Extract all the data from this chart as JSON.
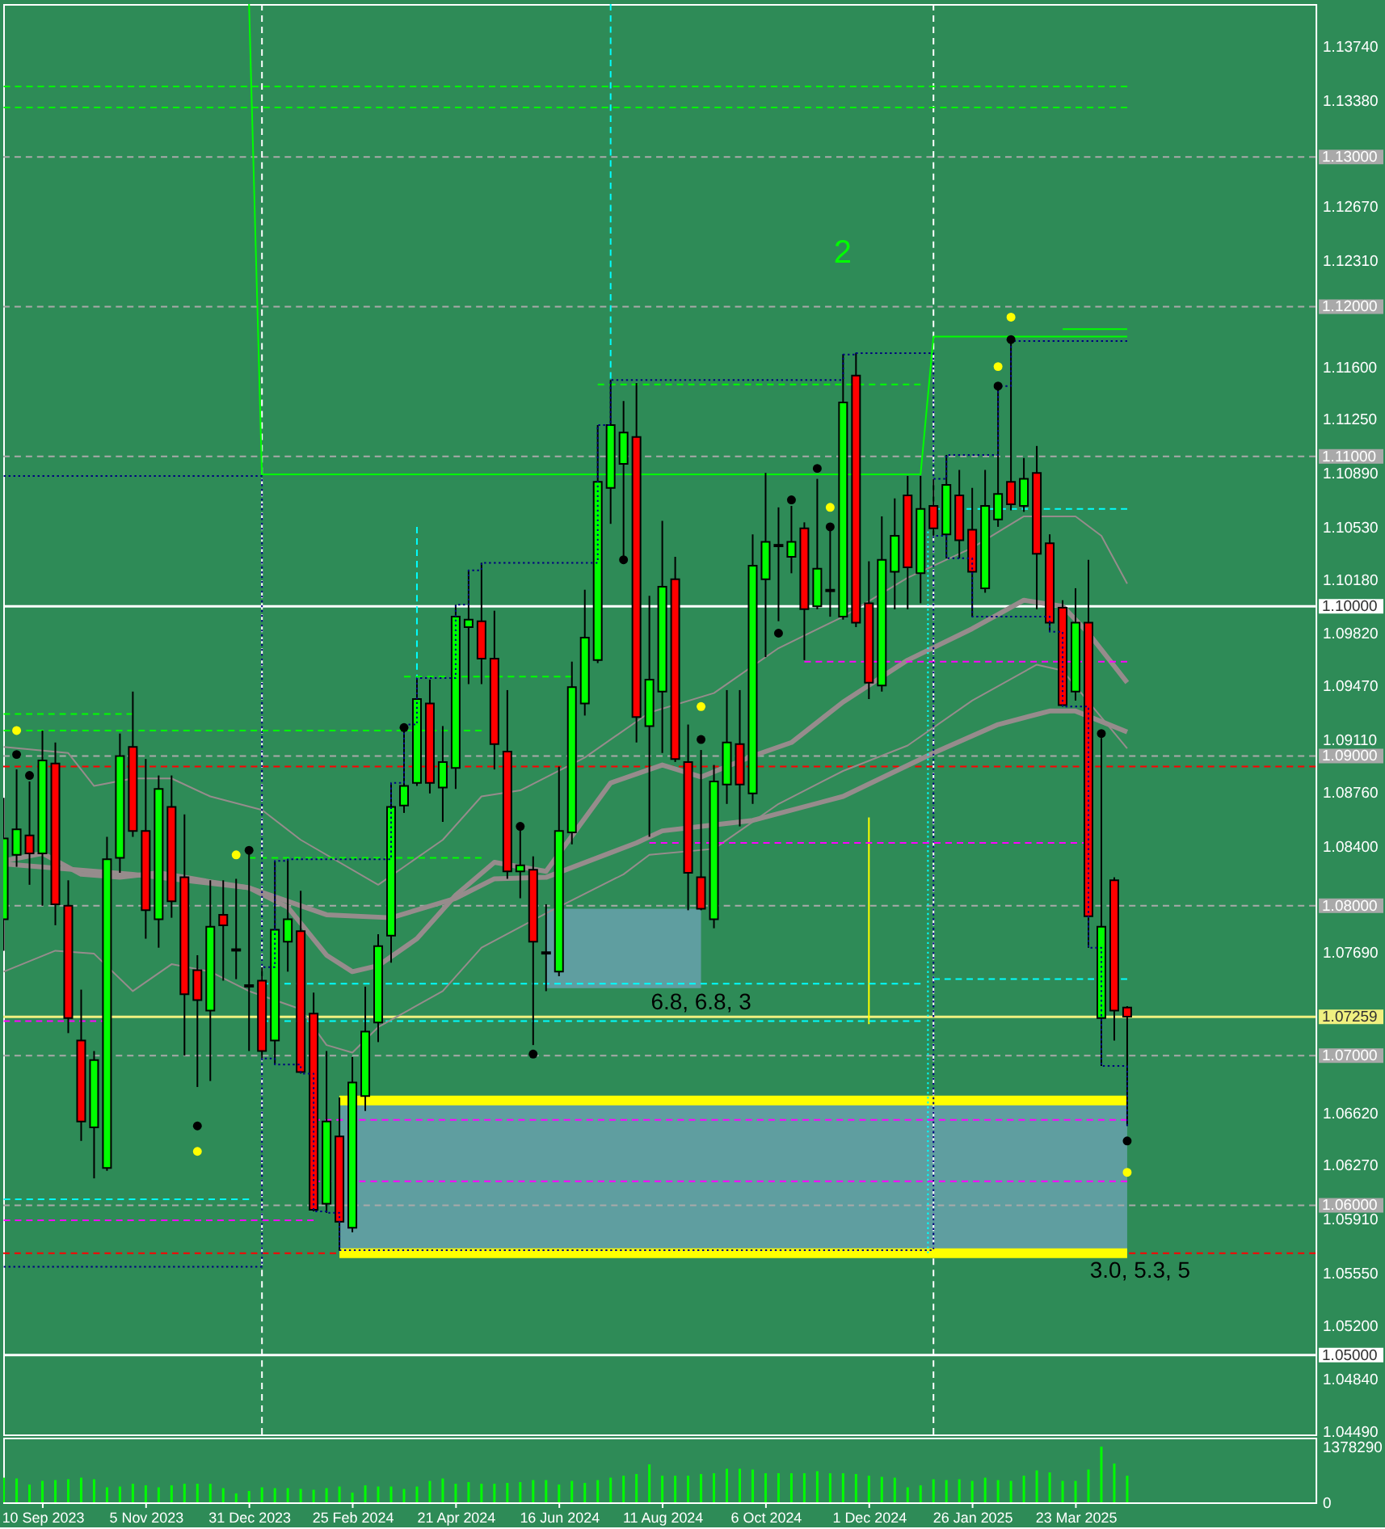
{
  "chart_data": [
    {
      "type": "candlestick",
      "x": [
        "2023-08-20",
        "2023-08-27",
        "2023-09-03",
        "2023-09-10",
        "2023-09-17",
        "2023-09-24",
        "2023-10-01",
        "2023-10-08",
        "2023-10-15",
        "2023-10-22",
        "2023-10-29",
        "2023-11-05",
        "2023-11-12",
        "2023-11-19",
        "2023-11-26",
        "2023-12-03",
        "2023-12-10",
        "2023-12-17",
        "2023-12-24",
        "2023-12-31",
        "2024-01-07",
        "2024-01-14",
        "2024-01-21",
        "2024-01-28",
        "2024-02-04",
        "2024-02-11",
        "2024-02-18",
        "2024-02-25",
        "2024-03-03",
        "2024-03-10",
        "2024-03-17",
        "2024-03-24",
        "2024-03-31",
        "2024-04-07",
        "2024-04-14",
        "2024-04-21",
        "2024-04-28",
        "2024-05-05",
        "2024-05-12",
        "2024-05-19",
        "2024-05-26",
        "2024-06-02",
        "2024-06-09",
        "2024-06-16",
        "2024-06-23",
        "2024-06-30",
        "2024-07-07",
        "2024-07-14",
        "2024-07-21",
        "2024-07-28",
        "2024-08-04",
        "2024-08-11",
        "2024-08-18",
        "2024-08-25",
        "2024-09-01",
        "2024-09-08",
        "2024-09-15",
        "2024-09-22",
        "2024-09-29",
        "2024-10-06",
        "2024-10-13",
        "2024-10-20",
        "2024-10-27",
        "2024-11-03",
        "2024-11-10",
        "2024-11-17",
        "2024-11-24",
        "2024-12-01",
        "2024-12-08",
        "2024-12-15",
        "2024-12-22",
        "2024-12-29",
        "2025-01-05",
        "2025-01-12",
        "2025-01-19",
        "2025-01-26",
        "2025-02-02",
        "2025-02-09",
        "2025-02-16",
        "2025-02-23",
        "2025-03-02",
        "2025-03-09",
        "2025-03-16",
        "2025-03-23",
        "2025-03-30",
        "2025-04-06",
        "2025-04-13",
        "2025-04-20"
      ],
      "ohlc": [
        [
          1.0791,
          1.0872,
          1.077,
          1.0845
        ],
        [
          1.0834,
          1.0891,
          1.0826,
          1.0851
        ],
        [
          1.0847,
          1.0883,
          1.0814,
          1.0835
        ],
        [
          1.0835,
          1.0917,
          1.08,
          1.0897
        ],
        [
          1.0895,
          1.0909,
          1.0787,
          1.0801
        ],
        [
          1.08,
          1.0817,
          1.0715,
          1.0725
        ],
        [
          1.071,
          1.0744,
          1.0643,
          1.0656
        ],
        [
          1.0652,
          1.0703,
          1.0618,
          1.0697
        ],
        [
          1.0625,
          1.0846,
          1.0623,
          1.0831
        ],
        [
          1.0832,
          1.0915,
          1.0822,
          1.09
        ],
        [
          1.0906,
          1.0943,
          1.0846,
          1.085
        ],
        [
          1.085,
          1.0898,
          1.0778,
          1.0797
        ],
        [
          1.0791,
          1.0887,
          1.0772,
          1.0878
        ],
        [
          1.0866,
          1.0887,
          1.0792,
          1.0803
        ],
        [
          1.0819,
          1.0861,
          1.07,
          1.0741
        ],
        [
          1.0757,
          1.0767,
          1.0679,
          1.0737
        ],
        [
          1.073,
          1.0817,
          1.0683,
          1.0786
        ],
        [
          1.0794,
          1.0817,
          1.075,
          1.0787
        ],
        [
          1.0771,
          1.0818,
          1.0751,
          1.077
        ],
        [
          1.0747,
          1.0838,
          1.0703,
          1.0746
        ],
        [
          1.075,
          1.0759,
          1.0698,
          1.0703
        ],
        [
          1.071,
          1.083,
          1.0694,
          1.0784
        ],
        [
          1.0776,
          1.0831,
          1.0756,
          1.0791
        ],
        [
          1.0783,
          1.081,
          1.0688,
          1.0689
        ],
        [
          1.0728,
          1.0742,
          1.0596,
          1.0597
        ],
        [
          1.0601,
          1.0703,
          1.0595,
          1.0656
        ],
        [
          1.0646,
          1.0672,
          1.057,
          1.0589
        ],
        [
          1.0585,
          1.0699,
          1.0582,
          1.0682
        ],
        [
          1.0673,
          1.0746,
          1.0663,
          1.0716
        ],
        [
          1.0722,
          1.0781,
          1.0709,
          1.0773
        ],
        [
          1.078,
          1.0882,
          1.0762,
          1.0866
        ],
        [
          1.0867,
          1.0921,
          1.0862,
          1.088
        ],
        [
          1.0882,
          1.0952,
          1.088,
          1.0938
        ],
        [
          1.0935,
          1.0951,
          1.0875,
          1.0882
        ],
        [
          1.0879,
          1.092,
          1.0856,
          1.0896
        ],
        [
          1.0892,
          1.1001,
          1.0878,
          1.0993
        ],
        [
          1.0986,
          1.1024,
          1.0948,
          1.0991
        ],
        [
          1.099,
          1.1029,
          1.0948,
          1.0965
        ],
        [
          1.0965,
          1.0997,
          1.0891,
          1.0908
        ],
        [
          1.0903,
          1.0944,
          1.0818,
          1.0823
        ],
        [
          1.0823,
          1.0853,
          1.0805,
          1.0827
        ],
        [
          1.0824,
          1.0833,
          1.0707,
          1.0776
        ],
        [
          1.0769,
          1.0801,
          1.0743,
          1.0768
        ],
        [
          1.0756,
          1.0893,
          1.0753,
          1.085
        ],
        [
          1.0849,
          1.0963,
          1.0841,
          1.0946
        ],
        [
          1.0935,
          1.1011,
          1.0927,
          1.0979
        ],
        [
          1.0964,
          1.1121,
          1.0962,
          1.1083
        ],
        [
          1.1079,
          1.1151,
          1.1055,
          1.1121
        ],
        [
          1.1095,
          1.1137,
          1.1031,
          1.1116
        ],
        [
          1.1113,
          1.1149,
          1.0909,
          1.0926
        ],
        [
          1.092,
          1.1007,
          1.0846,
          1.0951
        ],
        [
          1.0943,
          1.1057,
          1.0902,
          1.1013
        ],
        [
          1.1018,
          1.1033,
          1.0896,
          1.0898
        ],
        [
          1.0896,
          1.0921,
          1.0797,
          1.0822
        ],
        [
          1.0819,
          1.0904,
          1.0797,
          1.0798
        ],
        [
          1.0791,
          1.0894,
          1.0785,
          1.0883
        ],
        [
          1.0881,
          1.0944,
          1.0868,
          1.0909
        ],
        [
          1.0908,
          1.0944,
          1.0853,
          1.0881
        ],
        [
          1.0875,
          1.1048,
          1.0868,
          1.1027
        ],
        [
          1.1018,
          1.1089,
          1.0966,
          1.1043
        ],
        [
          1.1041,
          1.1066,
          1.099,
          1.104
        ],
        [
          1.1033,
          1.1067,
          1.1022,
          1.1043
        ],
        [
          1.1052,
          1.1056,
          1.0964,
          1.0998
        ],
        [
          1.1,
          1.1085,
          1.0998,
          1.1025
        ],
        [
          1.1011,
          1.1053,
          1.0993,
          1.101
        ],
        [
          1.0993,
          1.1168,
          1.0991,
          1.1136
        ],
        [
          1.1154,
          1.1169,
          1.0986,
          1.0989
        ],
        [
          1.1002,
          1.103,
          1.0938,
          1.0949
        ],
        [
          1.0947,
          1.106,
          1.0943,
          1.1031
        ],
        [
          1.1023,
          1.1072,
          1.0998,
          1.1047
        ],
        [
          1.1074,
          1.1087,
          1.0998,
          1.1026
        ],
        [
          1.1022,
          1.1087,
          1.1002,
          1.1065
        ],
        [
          1.1067,
          1.1085,
          1.1047,
          1.1052
        ],
        [
          1.1048,
          1.1101,
          1.1032,
          1.1081
        ],
        [
          1.1074,
          1.1091,
          1.1032,
          1.1044
        ],
        [
          1.1051,
          1.1079,
          1.0993,
          1.1023
        ],
        [
          1.1012,
          1.1091,
          1.1009,
          1.1067
        ],
        [
          1.1058,
          1.1147,
          1.1053,
          1.1075
        ],
        [
          1.1083,
          1.1177,
          1.1064,
          1.1068
        ],
        [
          1.1067,
          1.1099,
          1.1063,
          1.1085
        ],
        [
          1.1089,
          1.1107,
          1.0998,
          1.1035
        ],
        [
          1.1042,
          1.1048,
          1.0983,
          1.0989
        ],
        [
          1.0999,
          1.1004,
          1.0933,
          1.0934
        ],
        [
          1.0943,
          1.1012,
          1.0937,
          1.0989
        ],
        [
          1.0989,
          1.1031,
          1.0772,
          1.0793
        ],
        [
          1.0725,
          1.0912,
          1.0693,
          1.0786
        ],
        [
          1.0817,
          1.0819,
          1.071,
          1.073
        ],
        [
          1.0732,
          1.0733,
          1.0653,
          1.0726
        ]
      ],
      "colors": [
        "#00ff00",
        "#00ff00",
        "#ff0000",
        "#00ff00",
        "#ff0000",
        "#ff0000",
        "#ff0000",
        "#00ff00",
        "#00ff00",
        "#00ff00",
        "#ff0000",
        "#ff0000",
        "#00ff00",
        "#ff0000",
        "#ff0000",
        "#ff0000",
        "#00ff00",
        "#ff0000",
        "#ff0000",
        "#ff0000",
        "#ff0000",
        "#00ff00",
        "#00ff00",
        "#ff0000",
        "#ff0000",
        "#00ff00",
        "#ff0000",
        "#00ff00",
        "#00ff00",
        "#00ff00",
        "#00ff00",
        "#00ff00",
        "#00ff00",
        "#ff0000",
        "#00ff00",
        "#00ff00",
        "#00ff00",
        "#ff0000",
        "#ff0000",
        "#ff0000",
        "#00ff00",
        "#ff0000",
        "#ff0000",
        "#00ff00",
        "#00ff00",
        "#00ff00",
        "#00ff00",
        "#00ff00",
        "#00ff00",
        "#ff0000",
        "#00ff00",
        "#00ff00",
        "#ff0000",
        "#ff0000",
        "#ff0000",
        "#00ff00",
        "#00ff00",
        "#ff0000",
        "#00ff00",
        "#00ff00",
        "#ff0000",
        "#00ff00",
        "#ff0000",
        "#00ff00",
        "#ff0000",
        "#00ff00",
        "#ff0000",
        "#ff0000",
        "#00ff00",
        "#00ff00",
        "#ff0000",
        "#00ff00",
        "#ff0000",
        "#00ff00",
        "#ff0000",
        "#ff0000",
        "#00ff00",
        "#00ff00",
        "#ff0000",
        "#00ff00",
        "#ff0000",
        "#ff0000",
        "#ff0000",
        "#00ff00",
        "#ff0000",
        "#00ff00",
        "#ff0000",
        "#ff0000"
      ],
      "series": [
        {
          "type": "line",
          "color": "#968c8c",
          "line_style": "solid",
          "x": [
            "2023-08-20",
            "2023-09-10",
            "2023-10-01",
            "2023-10-22",
            "2023-11-12",
            "2023-12-10",
            "2023-12-31",
            "2024-01-21",
            "2024-02-11",
            "2024-02-25",
            "2024-03-10",
            "2024-03-31",
            "2024-04-21",
            "2024-05-12",
            "2024-06-09",
            "2024-07-14",
            "2024-08-11",
            "2024-09-01",
            "2024-09-29",
            "2024-10-20",
            "2024-11-17",
            "2024-12-22",
            "2025-01-26",
            "2025-02-23",
            "2025-03-16",
            "2025-03-30",
            "2025-04-20"
          ],
          "values": [
            1.083,
            1.0835,
            1.0821,
            1.0819,
            1.0822,
            1.0816,
            1.0812,
            1.0799,
            1.0767,
            1.0756,
            1.076,
            1.0778,
            1.0807,
            1.0829,
            1.0823,
            1.0882,
            1.0894,
            1.0886,
            1.09,
            1.0909,
            1.0936,
            1.0964,
            1.0985,
            1.1004,
            1.1,
            1.0982,
            1.0949
          ]
        },
        {
          "type": "line",
          "color": "#968c8c",
          "line_style": "solid",
          "x": [
            "2023-08-20",
            "2023-10-29",
            "2023-12-31",
            "2024-02-11",
            "2024-03-17",
            "2024-04-21",
            "2024-05-12",
            "2024-06-09",
            "2024-07-28",
            "2024-08-11",
            "2024-09-29",
            "2024-11-17",
            "2025-01-05",
            "2025-02-09",
            "2025-03-09",
            "2025-03-23",
            "2025-04-20"
          ],
          "values": [
            1.0828,
            1.0821,
            1.0812,
            1.0794,
            1.0792,
            1.0805,
            1.0818,
            1.0819,
            1.0842,
            1.085,
            1.0857,
            1.0873,
            1.0902,
            1.0921,
            1.093,
            1.093,
            1.0916
          ]
        },
        {
          "type": "line",
          "color": "#5f9ea0",
          "x": [
            "2024-06-09",
            "2024-09-01"
          ],
          "values": [
            null,
            null
          ],
          "upper": [
            1.0798,
            1.0798
          ],
          "lower": [
            1.0745,
            1.0745
          ]
        },
        {
          "type": "line",
          "color": "#5f9ea0",
          "x": [
            "2024-02-18",
            "2025-04-20"
          ],
          "values": [
            null,
            null
          ],
          "upper": [
            1.067,
            1.067
          ],
          "lower": [
            1.0568,
            1.0568
          ]
        },
        {
          "type": "line",
          "color": "#ffff00",
          "line_style": "solid",
          "x": [
            "2024-02-18",
            "2025-04-20"
          ],
          "values": [
            1.067,
            1.067
          ]
        },
        {
          "type": "line",
          "color": "#ffff00",
          "line_style": "solid",
          "x": [
            "2024-02-18",
            "2025-04-20"
          ],
          "values": [
            1.0568,
            1.0568
          ]
        },
        {
          "type": "line",
          "color": "#00ff00",
          "line_style": "dashed",
          "x": [
            "2023-08-20",
            "2025-04-20"
          ],
          "values": [
            1.1347,
            1.1347
          ]
        },
        {
          "type": "line",
          "color": "#00ff00",
          "line_style": "dashed",
          "x": [
            "2023-08-20",
            "2025-04-20"
          ],
          "values": [
            1.1333,
            1.1333
          ]
        },
        {
          "type": "line",
          "color": "#00ff00",
          "line_style": "solid",
          "x": [
            "2023-12-31",
            "2024-01-07",
            "2024-12-29",
            "2025-01-05",
            "2025-04-20"
          ],
          "values": [
            1.1402,
            1.1088,
            1.1088,
            1.118,
            1.118
          ]
        },
        {
          "type": "line",
          "color": "#ffff00",
          "line_style": "solid",
          "x": [
            "2024-12-01",
            "2024-12-01"
          ],
          "values": [
            1.0859,
            1.0721
          ]
        },
        {
          "type": "line",
          "color": "#00ffff",
          "line_style": "dashed",
          "x": [
            "2024-07-14",
            "2024-07-14"
          ],
          "values": [
            1.1402,
            1.1152
          ]
        },
        {
          "type": "line",
          "color": "#00ffff",
          "line_style": "dashed",
          "x": [
            "2024-03-31",
            "2024-03-31"
          ],
          "values": [
            1.1053,
            1.095
          ]
        },
        {
          "type": "line",
          "color": "#00ffff",
          "line_style": "dotted",
          "x": [
            "2025-01-02",
            "2025-01-02"
          ],
          "values": [
            1.105,
            1.0568
          ]
        },
        {
          "type": "line",
          "color": "#00ffff",
          "line_style": "dashed",
          "x": [
            "2024-01-07",
            "2024-12-29"
          ],
          "values": [
            1.0748,
            1.0748
          ]
        },
        {
          "type": "line",
          "color": "#00ffff",
          "line_style": "dashed",
          "x": [
            "2024-01-07",
            "2024-12-29"
          ],
          "values": [
            1.0723,
            1.0723
          ]
        },
        {
          "type": "line",
          "color": "#00ffff",
          "line_style": "dashed",
          "x": [
            "2025-01-05",
            "2025-04-20"
          ],
          "values": [
            1.0751,
            1.0751
          ]
        },
        {
          "type": "line",
          "color": "#00ffff",
          "line_style": "dashed",
          "x": [
            "2025-01-05",
            "2025-04-20"
          ],
          "values": [
            1.1065,
            1.1065
          ]
        },
        {
          "type": "line",
          "color": "#00ffff",
          "line_style": "dashed",
          "x": [
            "2023-08-20",
            "2023-12-31"
          ],
          "values": [
            1.0604,
            1.0604
          ]
        },
        {
          "type": "scatter",
          "color": "#ffff00",
          "x": [
            "2023-08-27",
            "2023-12-03",
            "2023-12-24",
            "2024-09-01",
            "2024-11-10",
            "2025-02-09",
            "2025-02-16",
            "2025-04-20"
          ],
          "values": [
            1.0917,
            1.0636,
            1.0834,
            1.0933,
            1.1066,
            1.116,
            1.1193,
            1.0622
          ]
        },
        {
          "type": "scatter",
          "color": "#000000",
          "x": [
            "2023-08-27",
            "2023-09-03",
            "2023-12-03",
            "2023-12-31",
            "2024-03-24",
            "2024-05-26",
            "2024-06-02",
            "2024-07-21",
            "2024-09-01",
            "2024-10-13",
            "2024-10-20",
            "2024-11-03",
            "2024-11-10",
            "2025-02-09",
            "2025-02-16",
            "2025-04-06",
            "2025-04-20"
          ],
          "values": [
            1.0901,
            1.0887,
            1.0653,
            1.0837,
            1.0919,
            1.0853,
            1.0701,
            1.1031,
            1.0911,
            1.0982,
            1.1071,
            1.1092,
            1.1053,
            1.1147,
            1.1178,
            1.0915,
            1.0643
          ]
        },
        {
          "type": "step",
          "color": "#000080",
          "line_style": "dotted",
          "x": [
            "2023-08-20",
            "2023-12-31",
            "2024-01-07",
            "2024-01-14",
            "2024-01-21",
            "2024-03-17",
            "2024-03-24",
            "2024-03-31",
            "2024-04-21",
            "2024-04-28",
            "2024-05-05",
            "2024-07-07",
            "2024-07-14",
            "2024-11-17",
            "2024-11-24",
            "2024-12-29",
            "2025-01-05",
            "2025-01-12",
            "2025-02-09",
            "2025-02-16",
            "2025-04-20"
          ],
          "values": [
            1.1087,
            1.1087,
            1.0759,
            1.083,
            1.0831,
            1.0882,
            1.0921,
            1.0952,
            1.1001,
            1.1024,
            1.1029,
            1.1121,
            1.1151,
            1.1168,
            1.1169,
            1.1169,
            1.1085,
            1.1101,
            1.1147,
            1.1177,
            1.1177
          ]
        },
        {
          "type": "step",
          "color": "#000080",
          "line_style": "dotted",
          "x": [
            "2023-08-20",
            "2023-12-31",
            "2024-01-07",
            "2024-01-14",
            "2024-01-28",
            "2024-02-04",
            "2024-02-11",
            "2024-02-18",
            "2024-12-29",
            "2025-01-05",
            "2025-01-12",
            "2025-01-26",
            "2025-03-09",
            "2025-03-16",
            "2025-03-30",
            "2025-04-06",
            "2025-04-20"
          ],
          "values": [
            1.0559,
            1.0559,
            1.0698,
            1.0694,
            1.0688,
            1.0596,
            1.0595,
            1.057,
            1.057,
            1.1047,
            1.1032,
            1.0993,
            1.0983,
            1.0933,
            1.0772,
            1.0693,
            1.0653
          ]
        },
        {
          "type": "line",
          "color": "#968c8c",
          "line_style": "solid",
          "x": [
            "2023-08-20",
            "2023-09-24",
            "2023-10-08",
            "2023-10-29",
            "2023-11-19",
            "2023-12-10",
            "2024-01-07",
            "2024-01-28",
            "2024-03-10",
            "2024-04-14",
            "2024-05-05",
            "2024-05-26",
            "2024-06-30",
            "2024-08-04",
            "2024-09-08",
            "2024-10-13",
            "2024-11-17",
            "2024-12-22",
            "2025-01-26",
            "2025-02-23",
            "2025-03-23",
            "2025-04-06",
            "2025-04-20"
          ],
          "values": [
            1.0906,
            1.0902,
            1.088,
            1.0885,
            1.0885,
            1.0873,
            1.0864,
            1.0844,
            1.0814,
            1.0844,
            1.0873,
            1.0877,
            1.0899,
            1.0929,
            1.0942,
            1.0972,
            1.0993,
            1.1019,
            1.1039,
            1.106,
            1.106,
            1.1047,
            1.1015
          ]
        },
        {
          "type": "line",
          "color": "#968c8c",
          "line_style": "solid",
          "x": [
            "2023-08-20",
            "2023-09-17",
            "2023-10-08",
            "2023-10-29",
            "2023-11-19",
            "2023-12-10",
            "2023-12-31",
            "2024-01-28",
            "2024-02-11",
            "2024-02-25",
            "2024-03-10",
            "2024-04-14",
            "2024-05-05",
            "2024-06-09",
            "2024-07-21",
            "2024-08-04",
            "2024-09-08",
            "2024-10-13",
            "2024-11-17",
            "2024-12-22",
            "2025-01-26",
            "2025-03-02",
            "2025-03-16",
            "2025-04-20"
          ],
          "values": [
            1.0756,
            1.077,
            1.0768,
            1.0743,
            1.0761,
            1.0756,
            1.0743,
            1.0731,
            1.0707,
            1.0702,
            1.0719,
            1.0743,
            1.0772,
            1.0795,
            1.0821,
            1.0834,
            1.0838,
            1.0868,
            1.089,
            1.0907,
            1.0937,
            1.0961,
            1.0957,
            1.0905
          ]
        },
        {
          "type": "line",
          "color": "#ff00ff",
          "line_style": "dashed",
          "x": [
            "2024-02-04",
            "2025-04-20"
          ],
          "values": [
            1.0657,
            1.0657
          ]
        },
        {
          "type": "line",
          "color": "#ff00ff",
          "line_style": "dashed",
          "x": [
            "2024-02-04",
            "2025-04-20"
          ],
          "values": [
            1.0616,
            1.0616
          ]
        },
        {
          "type": "line",
          "color": "#ff00ff",
          "line_style": "dashed",
          "x": [
            "2023-08-20",
            "2024-02-04"
          ],
          "values": [
            1.059,
            1.059
          ]
        },
        {
          "type": "line",
          "color": "#ff00ff",
          "line_style": "dashed",
          "x": [
            "2024-08-04",
            "2025-03-30"
          ],
          "values": [
            1.0842,
            1.0842
          ]
        },
        {
          "type": "line",
          "color": "#ff00ff",
          "line_style": "dashed",
          "x": [
            "2024-10-27",
            "2025-04-20"
          ],
          "values": [
            1.0963,
            1.0963
          ]
        },
        {
          "type": "line",
          "color": "#ff00ff",
          "line_style": "dashed",
          "x": [
            "2023-08-20",
            "2023-10-15"
          ],
          "values": [
            1.0723,
            1.0723
          ]
        },
        {
          "type": "line",
          "color": "#00ff00",
          "line_style": "dashed",
          "x": [
            "2023-08-20",
            "2023-10-29"
          ],
          "values": [
            1.0928,
            1.0928
          ]
        },
        {
          "type": "line",
          "color": "#00ff00",
          "line_style": "dashed",
          "x": [
            "2023-08-20",
            "2024-05-05"
          ],
          "values": [
            1.0917,
            1.0917
          ]
        },
        {
          "type": "line",
          "color": "#00ff00",
          "line_style": "dashed",
          "x": [
            "2023-12-31",
            "2024-05-05"
          ],
          "values": [
            1.0832,
            1.0832
          ]
        },
        {
          "type": "line",
          "color": "#00ff00",
          "line_style": "dashed",
          "x": [
            "2024-03-24",
            "2024-06-23"
          ],
          "values": [
            1.0953,
            1.0953
          ]
        },
        {
          "type": "line",
          "color": "#00ff00",
          "line_style": "dashed",
          "x": [
            "2024-07-07",
            "2024-12-29"
          ],
          "values": [
            1.1148,
            1.1148
          ]
        },
        {
          "type": "line",
          "color": "#00ff00",
          "line_style": "solid",
          "x": [
            "2025-03-16",
            "2025-04-20"
          ],
          "values": [
            1.1185,
            1.1185
          ]
        }
      ],
      "xlim": [
        "2023-08-19T18:00",
        "2025-07-31T03:00"
      ],
      "ylim": [
        1.0447,
        1.1402
      ],
      "yticks": [
        {
          "value": 1.1374,
          "label": "1.13740"
        },
        {
          "value": 1.1338,
          "label": "1.13380"
        },
        {
          "value": 1.1267,
          "label": "1.12670"
        },
        {
          "value": 1.1231,
          "label": "1.12310"
        },
        {
          "value": 1.116,
          "label": "1.11600"
        },
        {
          "value": 1.1125,
          "label": "1.11250"
        },
        {
          "value": 1.1089,
          "label": "1.10890"
        },
        {
          "value": 1.1053,
          "label": "1.10530"
        },
        {
          "value": 1.1018,
          "label": "1.10180"
        },
        {
          "value": 1.0982,
          "label": "1.09820"
        },
        {
          "value": 1.0947,
          "label": "1.09470"
        },
        {
          "value": 1.0911,
          "label": "1.09110"
        },
        {
          "value": 1.0876,
          "label": "1.08760"
        },
        {
          "value": 1.084,
          "label": "1.08400"
        },
        {
          "value": 1.0769,
          "label": "1.07690"
        },
        {
          "value": 1.0662,
          "label": "1.06620"
        },
        {
          "value": 1.0627,
          "label": "1.06270"
        },
        {
          "value": 1.0591,
          "label": "1.05910"
        },
        {
          "value": 1.0555,
          "label": "1.05550"
        },
        {
          "value": 1.052,
          "label": "1.05200"
        },
        {
          "value": 1.0484,
          "label": "1.04840"
        },
        {
          "value": 1.0449,
          "label": "1.04490"
        }
      ],
      "tick_labels": "y",
      "ref_lines": [
        {
          "axis": "y",
          "value": 1.13,
          "label": "1.13000",
          "color": "#a9a9a9",
          "line_style": "dashed"
        },
        {
          "axis": "y",
          "value": 1.12,
          "label": "1.12000",
          "color": "#a9a9a9",
          "line_style": "dashed"
        },
        {
          "axis": "y",
          "value": 1.11,
          "label": "1.11000",
          "color": "#a9a9a9",
          "line_style": "dashed"
        },
        {
          "axis": "y",
          "value": 1.1,
          "label": "1.10000",
          "color": "#ffffff",
          "line_style": "solid"
        },
        {
          "axis": "y",
          "value": 1.09,
          "label": "1.09000",
          "color": "#a9a9a9",
          "line_style": "dashed"
        },
        {
          "axis": "y",
          "value": 1.08,
          "label": "1.08000",
          "color": "#a9a9a9",
          "line_style": "dashed"
        },
        {
          "axis": "y",
          "value": 1.07259,
          "label": "1.07259",
          "color": "#f0f080",
          "line_style": "solid"
        },
        {
          "axis": "y",
          "value": 1.07,
          "label": "1.07000",
          "color": "#a9a9a9",
          "line_style": "dashed"
        },
        {
          "axis": "y",
          "value": 1.06,
          "label": "1.06000",
          "color": "#a9a9a9",
          "line_style": "dashed"
        },
        {
          "axis": "y",
          "value": 1.05,
          "label": "1.05000",
          "color": "#ffffff",
          "line_style": "solid"
        },
        {
          "axis": "y",
          "value": 1.0893,
          "color": "#ff0000",
          "line_style": "dashed"
        },
        {
          "axis": "y",
          "value": 1.0568,
          "color": "#ff0000",
          "line_style": "dashed"
        },
        {
          "axis": "x",
          "value": "2024-01-07",
          "color": "#ffffff",
          "line_style": "dashed"
        },
        {
          "axis": "x",
          "value": "2025-01-05",
          "color": "#ffffff",
          "line_style": "dashed"
        }
      ],
      "annotations": [
        "2",
        {
          "text": "6.8, 6.8, 3",
          "x": "2024-09-01",
          "y": 1.0745
        },
        {
          "text": "3.0, 5.3, 5",
          "x": "2025-04-20",
          "y": 1.0568
        }
      ]
    },
    {
      "type": "bar",
      "x": [
        "2023-08-20",
        "2023-08-27",
        "2023-09-03",
        "2023-09-10",
        "2023-09-17",
        "2023-09-24",
        "2023-10-01",
        "2023-10-08",
        "2023-10-15",
        "2023-10-22",
        "2023-10-29",
        "2023-11-05",
        "2023-11-12",
        "2023-11-19",
        "2023-11-26",
        "2023-12-03",
        "2023-12-10",
        "2023-12-17",
        "2023-12-24",
        "2023-12-31",
        "2024-01-07",
        "2024-01-14",
        "2024-01-21",
        "2024-01-28",
        "2024-02-04",
        "2024-02-11",
        "2024-02-18",
        "2024-02-25",
        "2024-03-03",
        "2024-03-10",
        "2024-03-17",
        "2024-03-24",
        "2024-03-31",
        "2024-04-07",
        "2024-04-14",
        "2024-04-21",
        "2024-04-28",
        "2024-05-05",
        "2024-05-12",
        "2024-05-19",
        "2024-05-26",
        "2024-06-02",
        "2024-06-09",
        "2024-06-16",
        "2024-06-23",
        "2024-06-30",
        "2024-07-07",
        "2024-07-14",
        "2024-07-21",
        "2024-07-28",
        "2024-08-04",
        "2024-08-11",
        "2024-08-18",
        "2024-08-25",
        "2024-09-01",
        "2024-09-08",
        "2024-09-15",
        "2024-09-22",
        "2024-09-29",
        "2024-10-06",
        "2024-10-13",
        "2024-10-20",
        "2024-10-27",
        "2024-11-03",
        "2024-11-10",
        "2024-11-17",
        "2024-11-24",
        "2024-12-01",
        "2024-12-08",
        "2024-12-15",
        "2024-12-22",
        "2024-12-29",
        "2025-01-05",
        "2025-01-12",
        "2025-01-19",
        "2025-01-26",
        "2025-02-02",
        "2025-02-09",
        "2025-02-16",
        "2025-02-23",
        "2025-03-02",
        "2025-03-09",
        "2025-03-16",
        "2025-03-23",
        "2025-03-30",
        "2025-04-06",
        "2025-04-13",
        "2025-04-20"
      ],
      "values": [
        610000,
        590000,
        440000,
        530000,
        550000,
        570000,
        610000,
        570000,
        370000,
        390000,
        460000,
        420000,
        370000,
        420000,
        460000,
        460000,
        460000,
        350000,
        220000,
        280000,
        370000,
        350000,
        350000,
        330000,
        310000,
        350000,
        390000,
        240000,
        420000,
        390000,
        390000,
        330000,
        390000,
        530000,
        590000,
        460000,
        500000,
        460000,
        460000,
        480000,
        500000,
        550000,
        550000,
        440000,
        530000,
        480000,
        550000,
        610000,
        660000,
        700000,
        940000,
        660000,
        660000,
        660000,
        700000,
        720000,
        830000,
        830000,
        810000,
        720000,
        720000,
        720000,
        720000,
        770000,
        720000,
        720000,
        700000,
        660000,
        630000,
        610000,
        370000,
        420000,
        570000,
        550000,
        570000,
        530000,
        610000,
        550000,
        530000,
        660000,
        790000,
        740000,
        530000,
        530000,
        810000,
        1378290,
        960000,
        660000
      ],
      "color": "#00ff00",
      "xlim": [
        "2023-08-19T18:00",
        "2025-07-31T03:00"
      ],
      "ylim": [
        0,
        1600000
      ],
      "yticks": [
        0,
        1378290
      ],
      "xticks": [
        {
          "value": "2023-09-10",
          "label": "10 Sep 2023"
        },
        {
          "value": "2023-11-05",
          "label": "5 Nov 2023"
        },
        {
          "value": "2023-12-31",
          "label": "31 Dec 2023"
        },
        {
          "value": "2024-02-25",
          "label": "25 Feb 2024"
        },
        {
          "value": "2024-04-21",
          "label": "21 Apr 2024"
        },
        {
          "value": "2024-06-16",
          "label": "16 Jun 2024"
        },
        {
          "value": "2024-08-11",
          "label": "11 Aug 2024"
        },
        {
          "value": "2024-10-06",
          "label": "6 Oct 2024"
        },
        {
          "value": "2024-12-01",
          "label": "1 Dec 2024"
        },
        {
          "value": "2025-01-26",
          "label": "26 Jan 2025"
        },
        {
          "value": "2025-03-23",
          "label": "23 Mar 2025"
        }
      ]
    }
  ]
}
